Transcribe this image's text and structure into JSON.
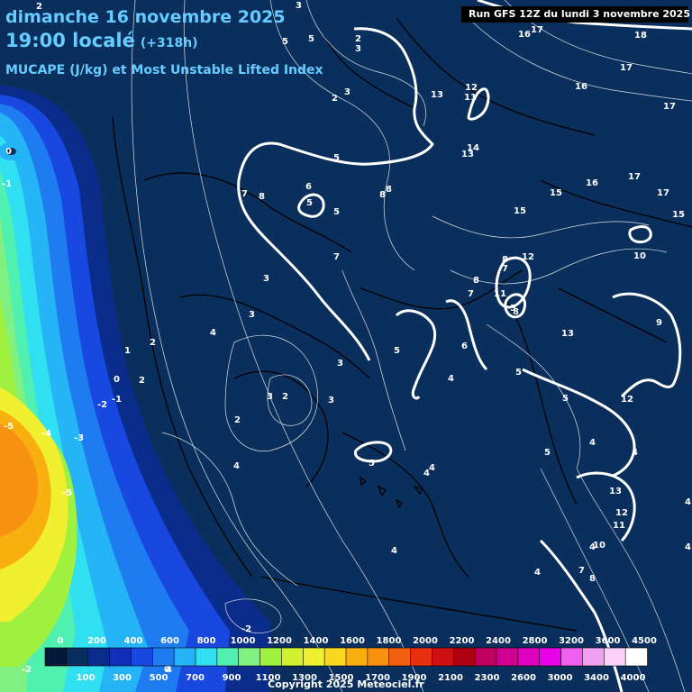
{
  "header": {
    "date": "dimanche 16 novembre 2025",
    "local_time": "19:00 localé",
    "offset": "(+318h)",
    "field": "MUCAPE (J/kg) et Most Unstable Lifted Index"
  },
  "run_banner": "Run GFS 12Z du lundi 3 novembre 2025",
  "copyright": "Copyright 2025 Meteociel.fr",
  "legend": {
    "upper_ticks": [
      "0",
      "200",
      "400",
      "600",
      "800",
      "1000",
      "1200",
      "1400",
      "1600",
      "1800",
      "2000",
      "2200",
      "2400",
      "2800",
      "3200",
      "3600",
      "4500"
    ],
    "lower_ticks": [
      "100",
      "300",
      "500",
      "700",
      "900",
      "1100",
      "1300",
      "1500",
      "1700",
      "1900",
      "2100",
      "2300",
      "2600",
      "3000",
      "3400",
      "4000"
    ],
    "colors": [
      "#051a3a",
      "#0a2f5c",
      "#0a2c8a",
      "#1030b8",
      "#1848e0",
      "#1f7cf0",
      "#25b4f5",
      "#30e0f0",
      "#50f0b0",
      "#80f080",
      "#a0f040",
      "#d0f030",
      "#f0f030",
      "#f8d820",
      "#f8b010",
      "#f89010",
      "#f06010",
      "#e83010",
      "#d01010",
      "#b00010",
      "#c00060",
      "#d00090",
      "#e000c0",
      "#e800e8",
      "#f060f0",
      "#f0a0f0",
      "#f8d0f8",
      "#ffffff"
    ]
  },
  "map_labels": {
    "lifted_index": [
      "0",
      "-1",
      "0",
      "-1",
      "-2",
      "-5",
      "-4",
      "-3",
      "-5",
      "-2",
      "-2",
      "1",
      "2",
      "2",
      "0",
      "2",
      "3",
      "4",
      "3",
      "3",
      "3",
      "2",
      "4",
      "3",
      "4",
      "2",
      "3",
      "2",
      "3",
      "5",
      "5",
      "3",
      "2",
      "5",
      "5",
      "7",
      "8",
      "6",
      "5",
      "8",
      "8",
      "7",
      "4",
      "5",
      "5",
      "4",
      "6",
      "4",
      "5",
      "4",
      "4",
      "4",
      "13",
      "12",
      "11",
      "14",
      "13",
      "17",
      "16",
      "18",
      "17",
      "16",
      "17",
      "15",
      "16",
      "15",
      "17",
      "17",
      "15",
      "8",
      "12",
      "7",
      "8",
      "11",
      "7",
      "8",
      "5",
      "10",
      "9",
      "13",
      "5",
      "12",
      "4",
      "5",
      "13",
      "12",
      "11",
      "10",
      "4",
      "7",
      "8",
      "4",
      "4"
    ]
  },
  "colors": {
    "background": "#0a2f5c",
    "title_text": "#66ccff",
    "banner_bg": "#000000",
    "contour": "#ffffff"
  }
}
